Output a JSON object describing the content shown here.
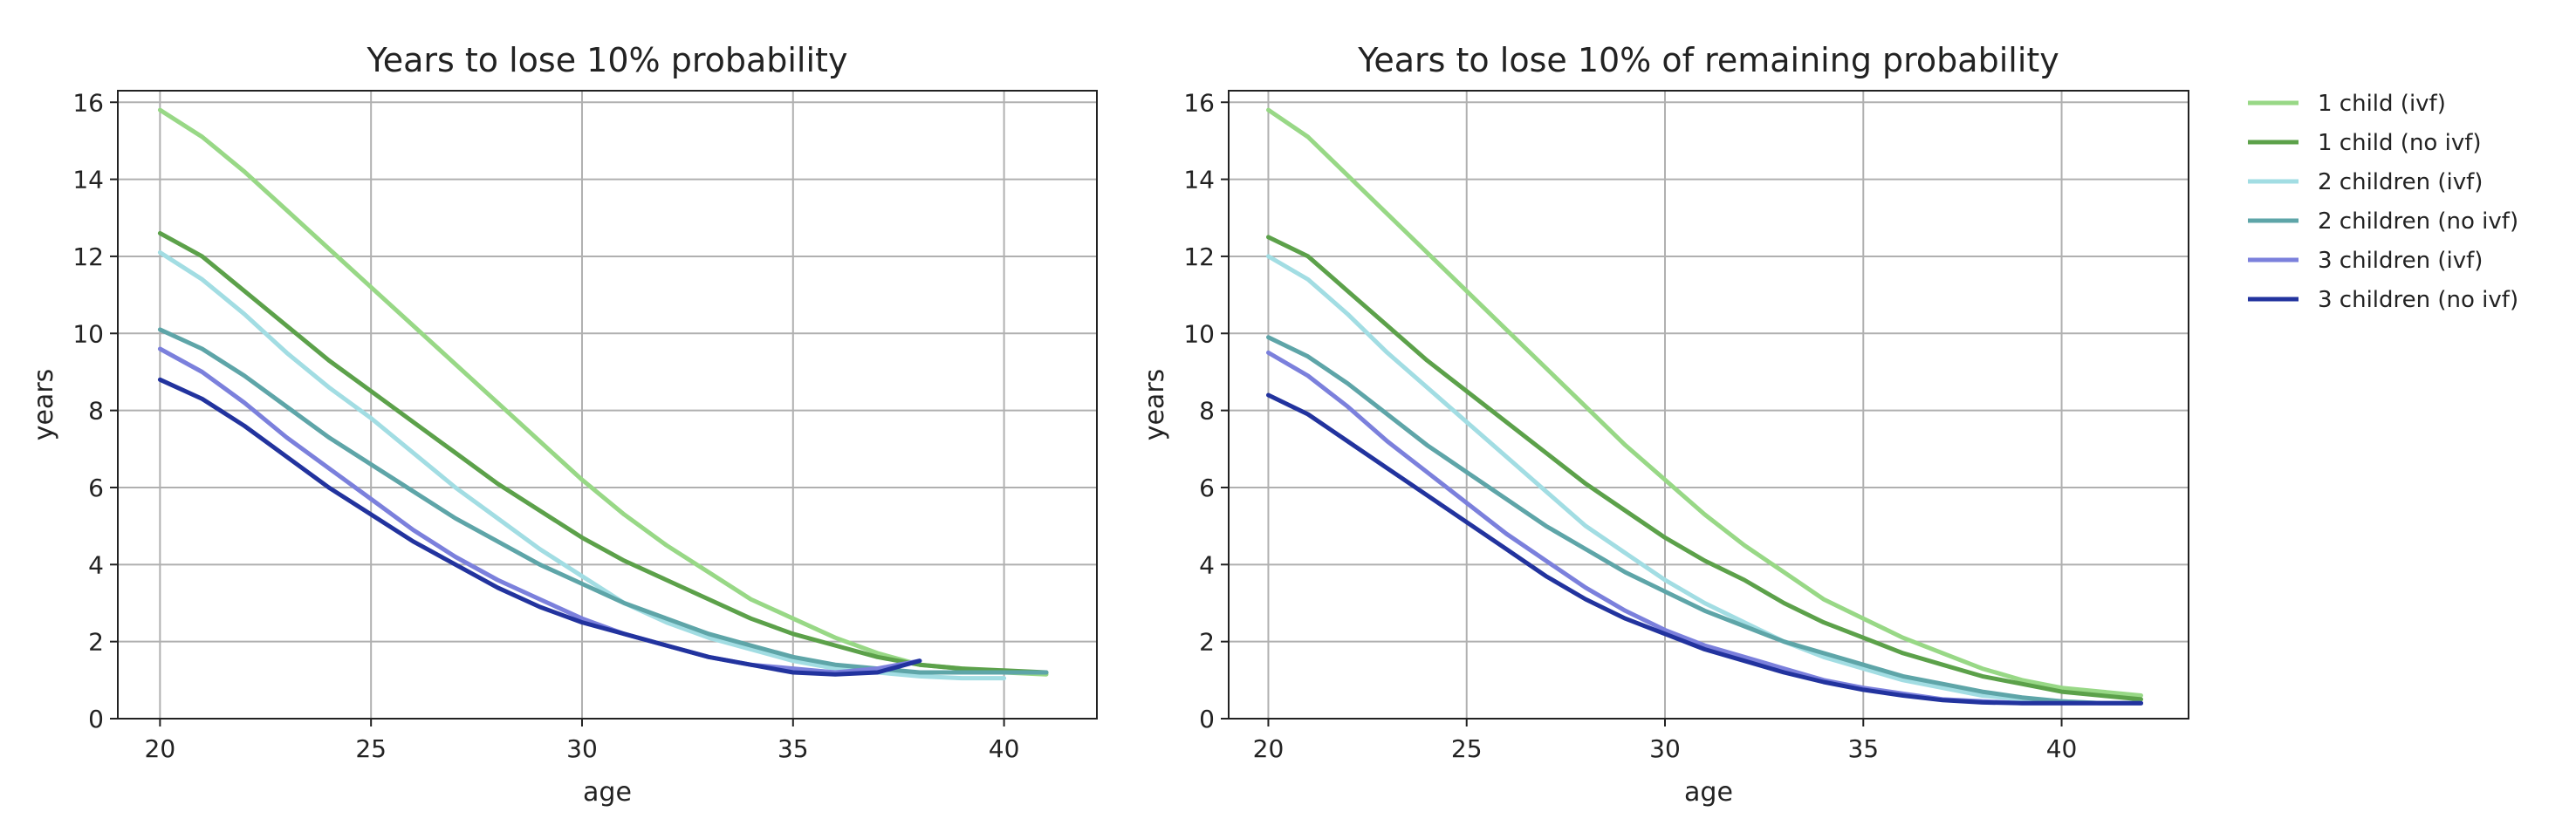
{
  "chart_data": [
    {
      "type": "line",
      "title": "Years to lose 10% probability",
      "xlabel": "age",
      "ylabel": "years",
      "xlim": [
        19,
        42.2
      ],
      "ylim": [
        0,
        16.3
      ],
      "xticks": [
        20,
        25,
        30,
        35,
        40
      ],
      "yticks": [
        0,
        2,
        4,
        6,
        8,
        10,
        12,
        14,
        16
      ],
      "grid": true,
      "series": [
        {
          "name": "1 child (ivf)",
          "color": "#98d886",
          "x": [
            20,
            21,
            22,
            23,
            24,
            25,
            26,
            27,
            28,
            29,
            30,
            31,
            32,
            33,
            34,
            35,
            36,
            37,
            38,
            39,
            40,
            41
          ],
          "y": [
            15.8,
            15.1,
            14.2,
            13.2,
            12.2,
            11.2,
            10.2,
            9.2,
            8.2,
            7.2,
            6.2,
            5.3,
            4.5,
            3.8,
            3.1,
            2.6,
            2.1,
            1.7,
            1.4,
            1.3,
            1.2,
            1.15
          ]
        },
        {
          "name": "1 child (no ivf)",
          "color": "#5ca14a",
          "x": [
            20,
            21,
            22,
            23,
            24,
            25,
            26,
            27,
            28,
            29,
            30,
            31,
            32,
            33,
            34,
            35,
            36,
            37,
            38,
            39,
            40,
            41
          ],
          "y": [
            12.6,
            12.0,
            11.1,
            10.2,
            9.3,
            8.5,
            7.7,
            6.9,
            6.1,
            5.4,
            4.7,
            4.1,
            3.6,
            3.1,
            2.6,
            2.2,
            1.9,
            1.6,
            1.4,
            1.3,
            1.25,
            1.2
          ]
        },
        {
          "name": "2 children (ivf)",
          "color": "#a2dde3",
          "x": [
            20,
            21,
            22,
            23,
            24,
            25,
            26,
            27,
            28,
            29,
            30,
            31,
            32,
            33,
            34,
            35,
            36,
            37,
            38,
            39,
            40
          ],
          "y": [
            12.1,
            11.4,
            10.5,
            9.5,
            8.6,
            7.8,
            6.9,
            6.0,
            5.2,
            4.4,
            3.7,
            3.0,
            2.5,
            2.1,
            1.8,
            1.5,
            1.3,
            1.2,
            1.1,
            1.05,
            1.05
          ]
        },
        {
          "name": "2 children (no ivf)",
          "color": "#5ea5a8",
          "x": [
            20,
            21,
            22,
            23,
            24,
            25,
            26,
            27,
            28,
            29,
            30,
            31,
            32,
            33,
            34,
            35,
            36,
            37,
            38,
            39,
            40,
            41
          ],
          "y": [
            10.1,
            9.6,
            8.9,
            8.1,
            7.3,
            6.6,
            5.9,
            5.2,
            4.6,
            4.0,
            3.5,
            3.0,
            2.6,
            2.2,
            1.9,
            1.6,
            1.4,
            1.3,
            1.2,
            1.2,
            1.2,
            1.2
          ]
        },
        {
          "name": "3 children (ivf)",
          "color": "#7b80dc",
          "x": [
            20,
            21,
            22,
            23,
            24,
            25,
            26,
            27,
            28,
            29,
            30,
            31,
            32,
            33,
            34,
            35,
            36,
            37,
            38
          ],
          "y": [
            9.6,
            9.0,
            8.2,
            7.3,
            6.5,
            5.7,
            4.9,
            4.2,
            3.6,
            3.1,
            2.6,
            2.2,
            1.9,
            1.6,
            1.4,
            1.3,
            1.2,
            1.3,
            1.5
          ]
        },
        {
          "name": "3 children (no ivf)",
          "color": "#22339e",
          "x": [
            20,
            21,
            22,
            23,
            24,
            25,
            26,
            27,
            28,
            29,
            30,
            31,
            32,
            33,
            34,
            35,
            36,
            37,
            38
          ],
          "y": [
            8.8,
            8.3,
            7.6,
            6.8,
            6.0,
            5.3,
            4.6,
            4.0,
            3.4,
            2.9,
            2.5,
            2.2,
            1.9,
            1.6,
            1.4,
            1.2,
            1.15,
            1.2,
            1.5
          ]
        }
      ]
    },
    {
      "type": "line",
      "title": "Years to lose 10% of remaining probability",
      "xlabel": "age",
      "ylabel": "years",
      "xlim": [
        19,
        43.2
      ],
      "ylim": [
        0,
        16.3
      ],
      "xticks": [
        20,
        25,
        30,
        35,
        40
      ],
      "yticks": [
        0,
        2,
        4,
        6,
        8,
        10,
        12,
        14,
        16
      ],
      "grid": true,
      "series": [
        {
          "name": "1 child (ivf)",
          "color": "#98d886",
          "x": [
            20,
            21,
            22,
            23,
            24,
            25,
            26,
            27,
            28,
            29,
            30,
            31,
            32,
            33,
            34,
            35,
            36,
            37,
            38,
            39,
            40,
            41,
            42
          ],
          "y": [
            15.8,
            15.1,
            14.1,
            13.1,
            12.1,
            11.1,
            10.1,
            9.1,
            8.1,
            7.1,
            6.2,
            5.3,
            4.5,
            3.8,
            3.1,
            2.6,
            2.1,
            1.7,
            1.3,
            1.0,
            0.8,
            0.7,
            0.6
          ]
        },
        {
          "name": "1 child (no ivf)",
          "color": "#5ca14a",
          "x": [
            20,
            21,
            22,
            23,
            24,
            25,
            26,
            27,
            28,
            29,
            30,
            31,
            32,
            33,
            34,
            35,
            36,
            37,
            38,
            39,
            40,
            41,
            42
          ],
          "y": [
            12.5,
            12.0,
            11.1,
            10.2,
            9.3,
            8.5,
            7.7,
            6.9,
            6.1,
            5.4,
            4.7,
            4.1,
            3.6,
            3.0,
            2.5,
            2.1,
            1.7,
            1.4,
            1.1,
            0.9,
            0.7,
            0.6,
            0.5
          ]
        },
        {
          "name": "2 children (ivf)",
          "color": "#a2dde3",
          "x": [
            20,
            21,
            22,
            23,
            24,
            25,
            26,
            27,
            28,
            29,
            30,
            31,
            32,
            33,
            34,
            35,
            36,
            37,
            38,
            39,
            40,
            41,
            42
          ],
          "y": [
            12.0,
            11.4,
            10.5,
            9.5,
            8.6,
            7.7,
            6.8,
            5.9,
            5.0,
            4.3,
            3.6,
            3.0,
            2.5,
            2.0,
            1.6,
            1.3,
            1.0,
            0.8,
            0.6,
            0.5,
            0.45,
            0.4,
            0.4
          ]
        },
        {
          "name": "2 children (no ivf)",
          "color": "#5ea5a8",
          "x": [
            20,
            21,
            22,
            23,
            24,
            25,
            26,
            27,
            28,
            29,
            30,
            31,
            32,
            33,
            34,
            35,
            36,
            37,
            38,
            39,
            40,
            41,
            42
          ],
          "y": [
            9.9,
            9.4,
            8.7,
            7.9,
            7.1,
            6.4,
            5.7,
            5.0,
            4.4,
            3.8,
            3.3,
            2.8,
            2.4,
            2.0,
            1.7,
            1.4,
            1.1,
            0.9,
            0.7,
            0.55,
            0.45,
            0.4,
            0.4
          ]
        },
        {
          "name": "3 children (ivf)",
          "color": "#7b80dc",
          "x": [
            20,
            21,
            22,
            23,
            24,
            25,
            26,
            27,
            28,
            29,
            30,
            31,
            32,
            33,
            34,
            35,
            36,
            37,
            38,
            39,
            40,
            41,
            42
          ],
          "y": [
            9.5,
            8.9,
            8.1,
            7.2,
            6.4,
            5.6,
            4.8,
            4.1,
            3.4,
            2.8,
            2.3,
            1.9,
            1.6,
            1.3,
            1.0,
            0.8,
            0.65,
            0.5,
            0.45,
            0.4,
            0.4,
            0.4,
            0.4
          ]
        },
        {
          "name": "3 children (no ivf)",
          "color": "#22339e",
          "x": [
            20,
            21,
            22,
            23,
            24,
            25,
            26,
            27,
            28,
            29,
            30,
            31,
            32,
            33,
            34,
            35,
            36,
            37,
            38,
            39,
            40,
            41,
            42
          ],
          "y": [
            8.4,
            7.9,
            7.2,
            6.5,
            5.8,
            5.1,
            4.4,
            3.7,
            3.1,
            2.6,
            2.2,
            1.8,
            1.5,
            1.2,
            0.95,
            0.75,
            0.6,
            0.48,
            0.42,
            0.4,
            0.4,
            0.4,
            0.4
          ]
        }
      ]
    }
  ],
  "legend": {
    "placement": "outside-right",
    "items": [
      {
        "label": "1 child (ivf)",
        "color": "#98d886"
      },
      {
        "label": "1 child (no ivf)",
        "color": "#5ca14a"
      },
      {
        "label": "2 children (ivf)",
        "color": "#a2dde3"
      },
      {
        "label": "2 children (no ivf)",
        "color": "#5ea5a8"
      },
      {
        "label": "3 children (ivf)",
        "color": "#7b80dc"
      },
      {
        "label": "3 children (no ivf)",
        "color": "#22339e"
      }
    ]
  }
}
